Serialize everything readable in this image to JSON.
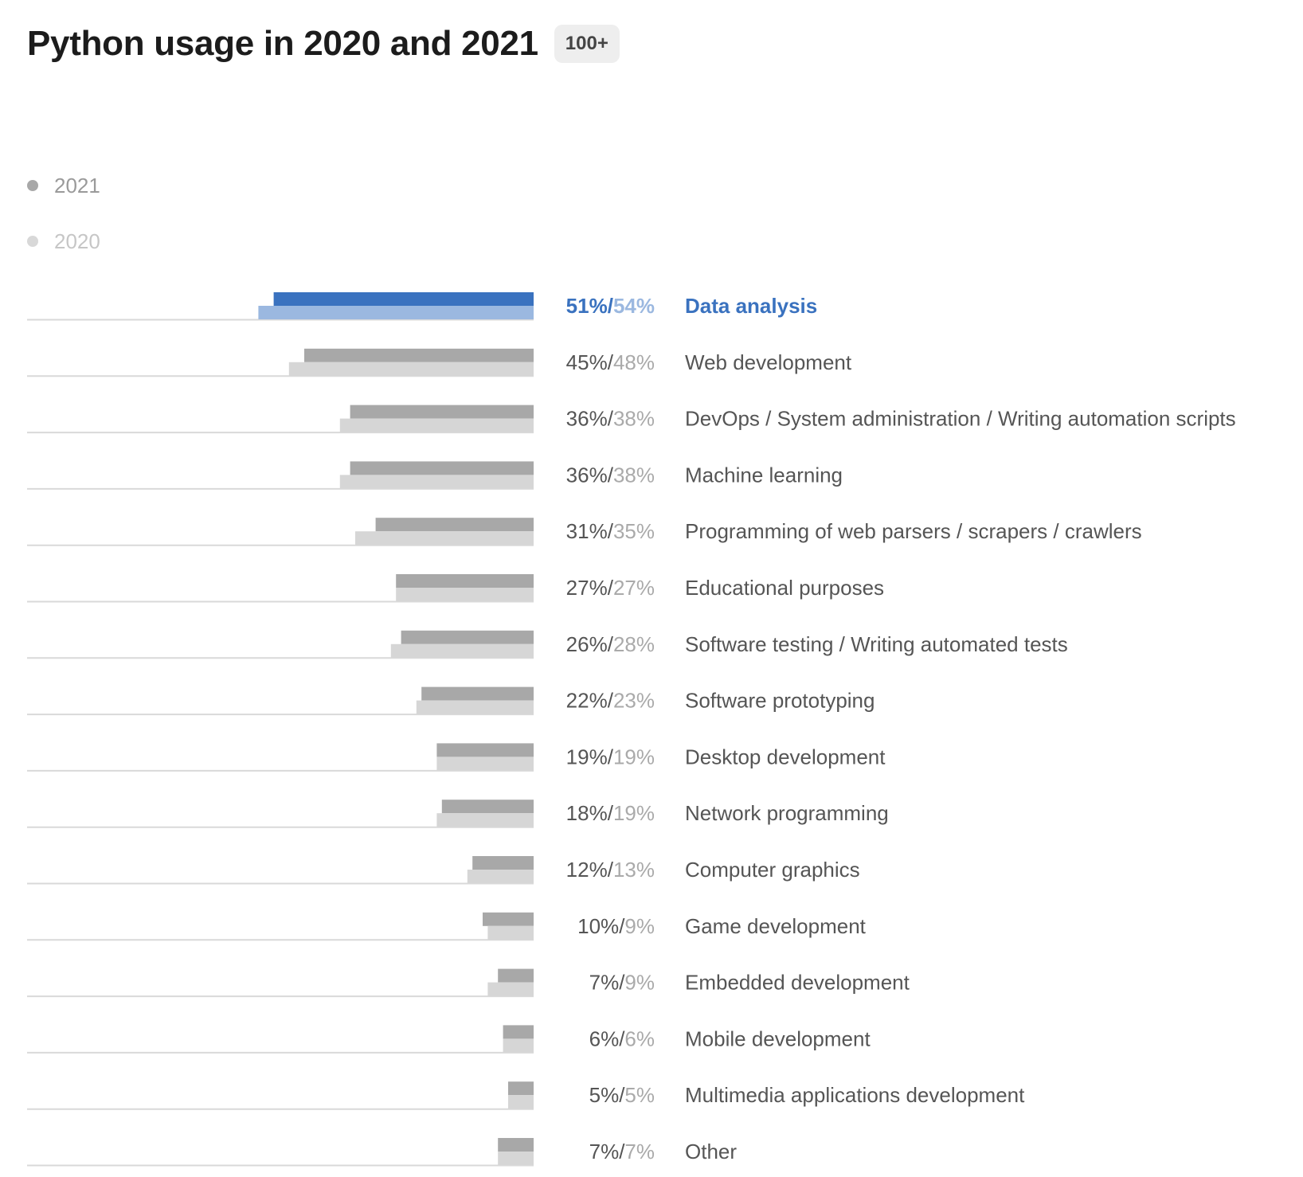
{
  "header": {
    "title": "Python usage in 2020 and 2021",
    "badge": "100+"
  },
  "legend": [
    {
      "label": "2021",
      "color": "#a8a8a8"
    },
    {
      "label": "2020",
      "color": "#d8d8d8"
    }
  ],
  "colors": {
    "bar_2021": "#a8a8a8",
    "bar_2020": "#d6d6d6",
    "highlight_2021": "#3a72bf",
    "highlight_2020": "#9bb8e0",
    "highlight_text": "#3a72bf",
    "text": "#555555",
    "secondary_text": "#aaaaaa",
    "baseline": "#d9d9d9"
  },
  "chart_data": {
    "type": "bar",
    "orientation": "horizontal",
    "title": "Python usage in 2020 and 2021",
    "categories": [
      "Data analysis",
      "Web development",
      "DevOps / System administration / Writing automation scripts",
      "Machine learning",
      "Programming of web parsers / scrapers / crawlers",
      "Educational purposes",
      "Software testing / Writing automated tests",
      "Software prototyping",
      "Desktop development",
      "Network programming",
      "Computer graphics",
      "Game development",
      "Embedded development",
      "Mobile development",
      "Multimedia applications development",
      "Other"
    ],
    "series": [
      {
        "name": "2021",
        "values": [
          51,
          45,
          36,
          36,
          31,
          27,
          26,
          22,
          19,
          18,
          12,
          10,
          7,
          6,
          5,
          7
        ]
      },
      {
        "name": "2020",
        "values": [
          54,
          48,
          38,
          38,
          35,
          27,
          28,
          23,
          19,
          19,
          13,
          9,
          9,
          6,
          5,
          7
        ]
      }
    ],
    "value_labels_2021": [
      "51%",
      "45%",
      "36%",
      "36%",
      "31%",
      "27%",
      "26%",
      "22%",
      "19%",
      "18%",
      "12%",
      "10%",
      "7%",
      "6%",
      "5%",
      "7%"
    ],
    "value_labels_2020": [
      "54%",
      "48%",
      "38%",
      "38%",
      "35%",
      "27%",
      "28%",
      "23%",
      "19%",
      "19%",
      "13%",
      "9%",
      "9%",
      "6%",
      "5%",
      "7%"
    ],
    "highlighted_category": "Data analysis",
    "xlim": [
      0,
      100
    ],
    "legend_position": "top-left",
    "grid": false
  }
}
